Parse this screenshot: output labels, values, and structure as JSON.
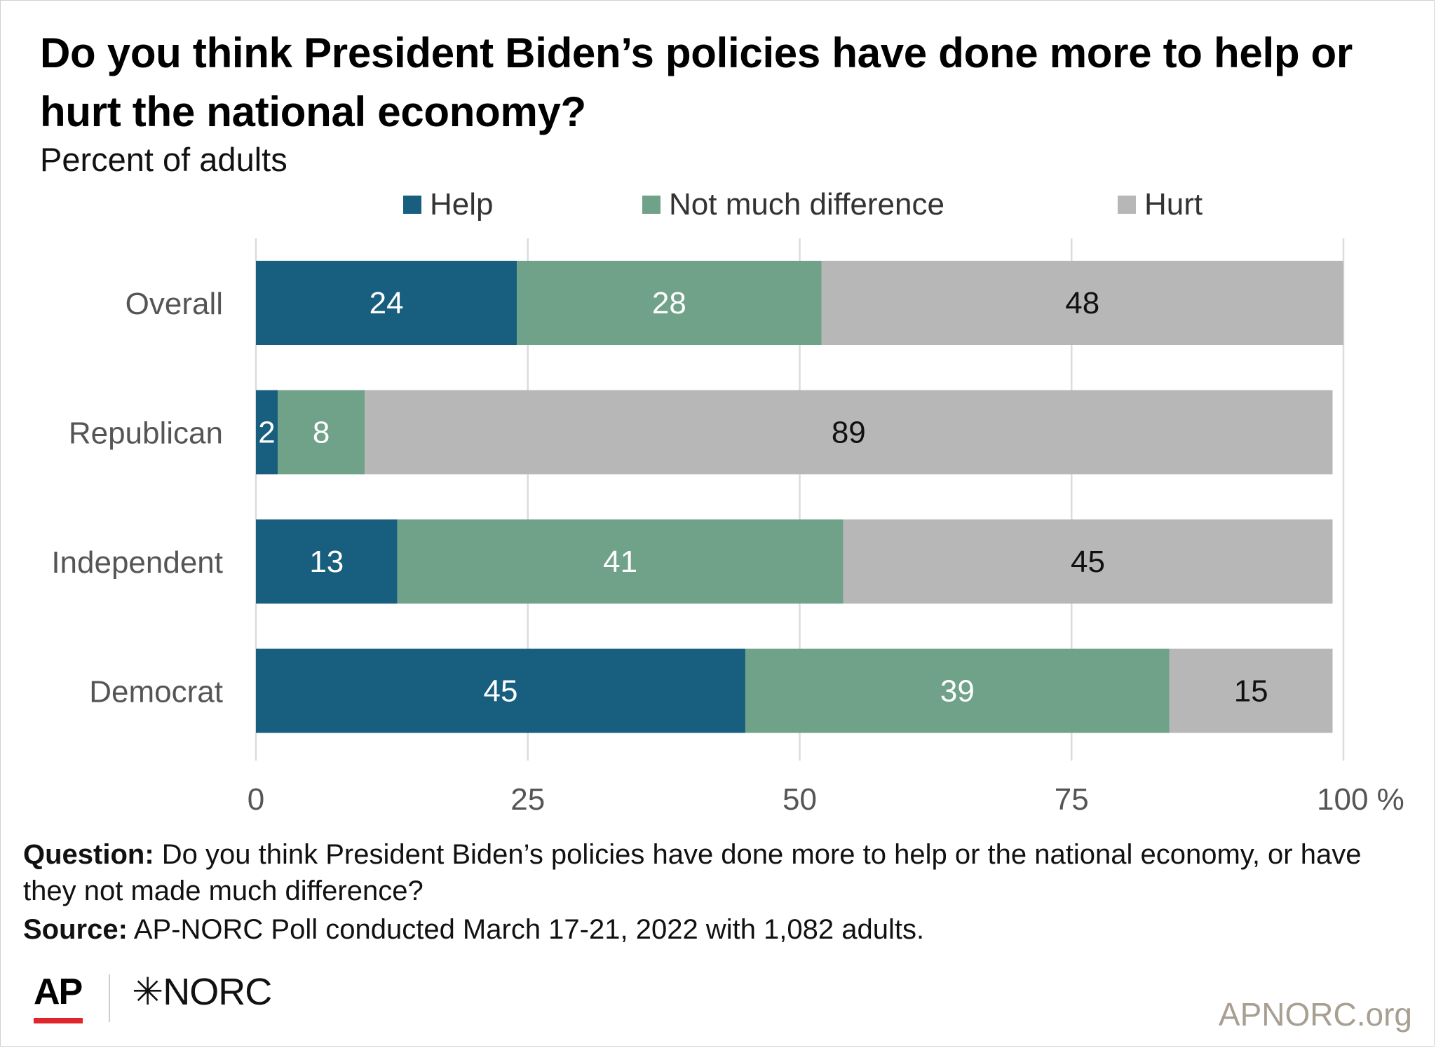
{
  "title": "Do you think President Biden’s policies have done more to help or hurt the national economy?",
  "subtitle": "Percent of adults",
  "colors": {
    "help": "#185e7e",
    "not_much": "#6fa288",
    "hurt": "#b7b7b7",
    "grid": "#dcdcdc",
    "axis_text": "#555555",
    "category_text": "#555555"
  },
  "chart_data": {
    "type": "bar",
    "orientation": "horizontal",
    "stacked": true,
    "categories": [
      "Overall",
      "Republican",
      "Independent",
      "Democrat"
    ],
    "series": [
      {
        "name": "Help",
        "values": [
          24,
          2,
          13,
          45
        ]
      },
      {
        "name": "Not much difference",
        "values": [
          28,
          8,
          41,
          39
        ]
      },
      {
        "name": "Hurt",
        "values": [
          48,
          89,
          45,
          15
        ]
      }
    ],
    "x_ticks": [
      "0",
      "25",
      "50",
      "75",
      "100 %"
    ],
    "x_tick_values": [
      0,
      25,
      50,
      75,
      100
    ],
    "xlim": [
      0,
      100
    ],
    "grid": true,
    "legend_position": "top"
  },
  "footer": {
    "question_label": "Question:",
    "question_text": "Do you think President Biden’s policies have done more to help or the national economy, or have they not made much difference?",
    "source_label": "Source:",
    "source_text": "AP-NORC Poll conducted March 17-21, 2022 with 1,082 adults.",
    "logo_ap": "AP",
    "logo_norc": "✳NORC",
    "site": "APNORC.org"
  }
}
